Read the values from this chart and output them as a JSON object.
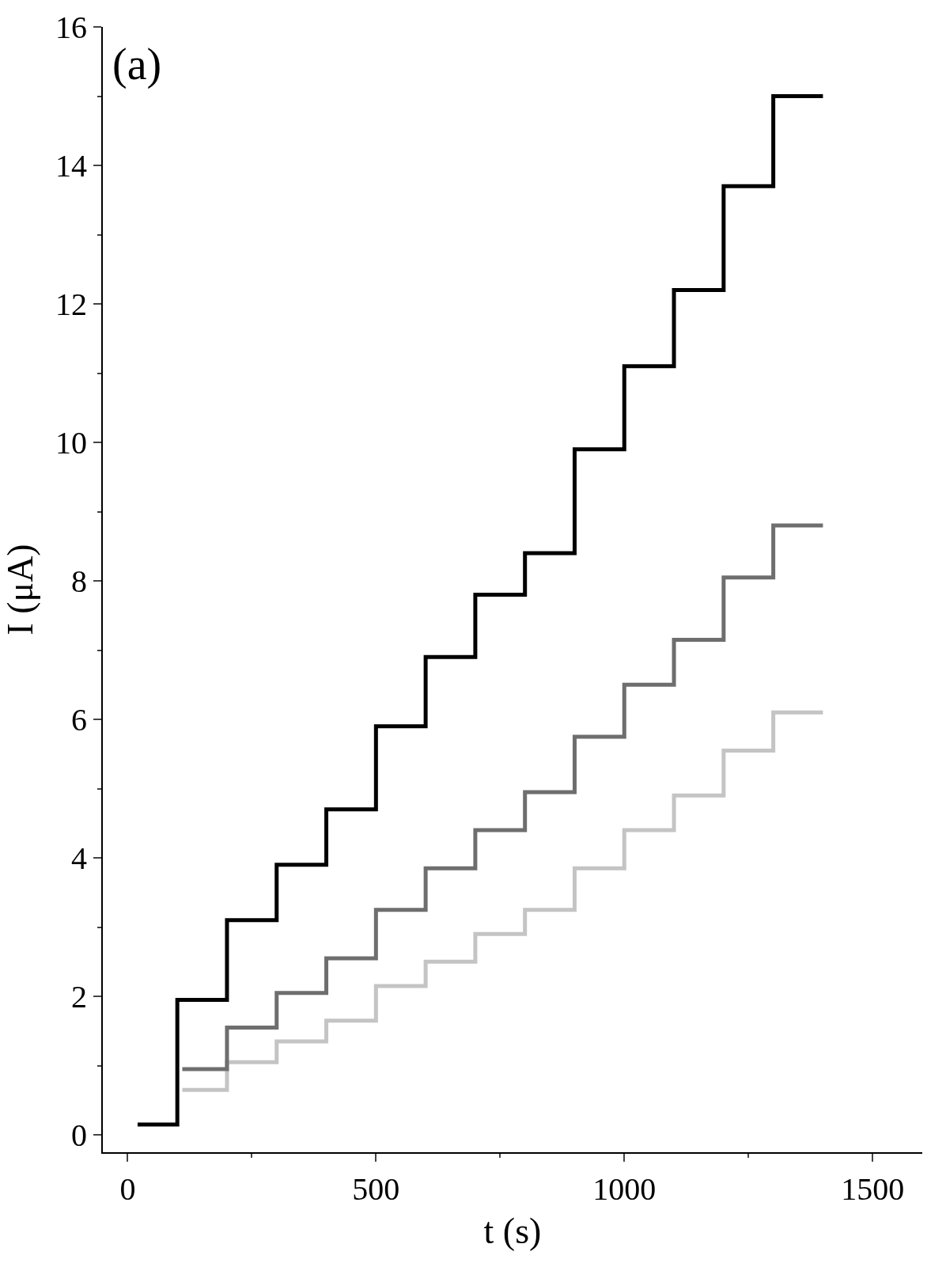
{
  "chart_data": {
    "type": "step",
    "xlabel": "t (s)",
    "ylabel": "I (μA)",
    "annotations": [
      "(a)"
    ],
    "xlim": [
      -50,
      1600
    ],
    "xticks": [
      0,
      500,
      1000,
      1500
    ],
    "ylim": [
      -0.25,
      16
    ],
    "yticks": [
      0,
      2,
      4,
      6,
      8,
      10,
      12,
      14,
      16
    ],
    "marker": "none",
    "line_style": "solid",
    "series": [
      {
        "color": "#c4c4c4",
        "x": [
          110,
          200,
          300,
          400,
          500,
          600,
          700,
          800,
          900,
          1000,
          1100,
          1200,
          1300,
          1400
        ],
        "values": [
          0.65,
          1.05,
          1.35,
          1.65,
          2.15,
          2.5,
          2.9,
          3.25,
          3.85,
          4.4,
          4.9,
          5.55,
          6.1,
          6.1
        ]
      },
      {
        "color": "#6e6e6e",
        "x": [
          110,
          200,
          300,
          400,
          500,
          600,
          700,
          800,
          900,
          1000,
          1100,
          1200,
          1300,
          1400
        ],
        "values": [
          0.95,
          1.55,
          2.05,
          2.55,
          3.25,
          3.85,
          4.4,
          4.95,
          5.75,
          6.5,
          7.15,
          8.05,
          8.8,
          8.8
        ]
      },
      {
        "color": "#000000",
        "x": [
          20,
          100,
          200,
          300,
          400,
          500,
          600,
          700,
          800,
          900,
          1000,
          1100,
          1200,
          1300,
          1400
        ],
        "values": [
          0.15,
          1.95,
          3.1,
          3.9,
          4.7,
          5.9,
          6.9,
          7.8,
          8.4,
          9.9,
          11.1,
          12.2,
          13.7,
          15.0,
          15.0
        ]
      }
    ]
  }
}
